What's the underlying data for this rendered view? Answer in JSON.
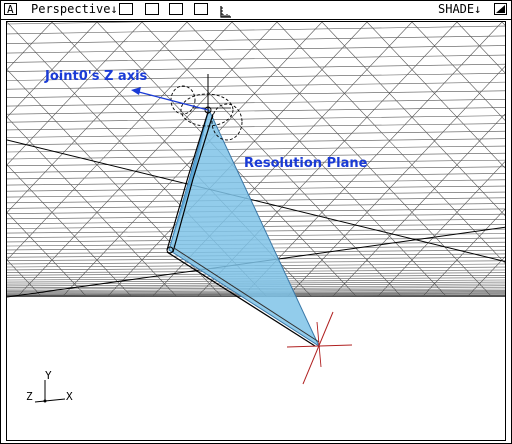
{
  "menubar": {
    "corner_label": "A",
    "view_menu_label": "Perspective↓",
    "shade_menu_label": "SHADE↓"
  },
  "icons": [
    "layout-single-icon",
    "layout-split-horizontal-icon",
    "layout-split-vertical-icon",
    "layout-quad-icon",
    "ruler-icon",
    "maximize-icon"
  ],
  "viewport": {
    "annotation_z_axis": "Joint0's Z axis",
    "annotation_plane": "Resolution Plane",
    "axis_y": "Y",
    "axis_z": "Z",
    "axis_x": "X"
  },
  "colors": {
    "annotation": "#1a3bd6",
    "plane_fill": "#7fc3e8",
    "target_cross": "#b02020"
  }
}
